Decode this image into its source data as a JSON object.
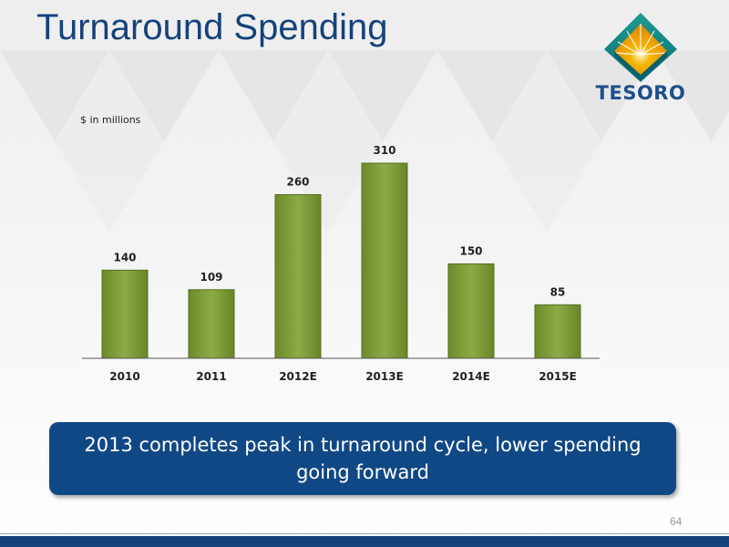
{
  "slide": {
    "title": "Turnaround Spending",
    "units_label": "$ in millions",
    "callout": "2013 completes peak in turnaround cycle, lower spending going forward",
    "page_number": "64"
  },
  "logo": {
    "text": "TESORO",
    "icon": "tesoro-sunburst-logo"
  },
  "colors": {
    "bar": "#7f9a3c",
    "title": "#16427a",
    "callout_bg": "#104886"
  },
  "chart_data": {
    "type": "bar",
    "categories": [
      "2010",
      "2011",
      "2012E",
      "2013E",
      "2014E",
      "2015E"
    ],
    "values": [
      140,
      109,
      260,
      310,
      150,
      85
    ],
    "title": "",
    "xlabel": "",
    "ylabel": "$ in millions",
    "ylim": [
      0,
      310
    ],
    "grid": false,
    "legend": "none",
    "data_labels": true
  }
}
